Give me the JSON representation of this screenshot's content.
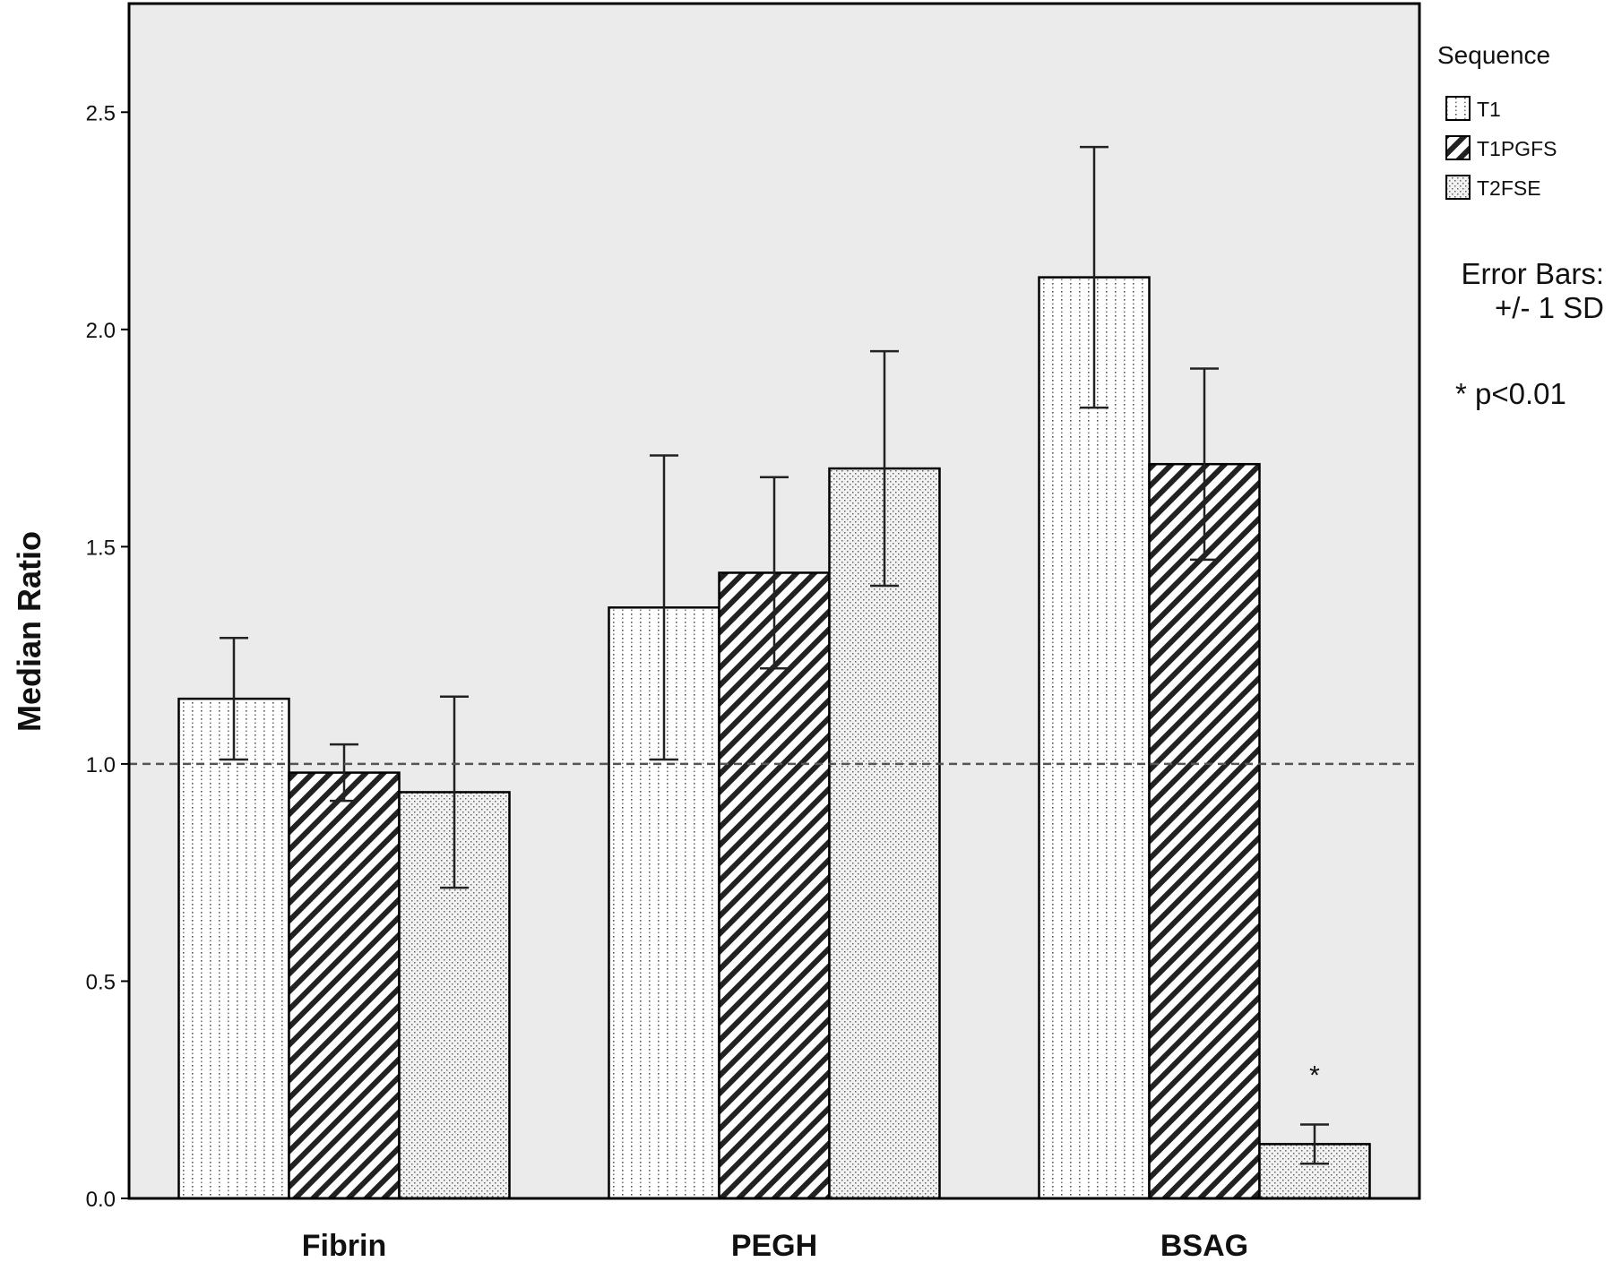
{
  "chart_data": {
    "type": "bar",
    "categories": [
      "Fibrin",
      "PEGH",
      "BSAG"
    ],
    "ylabel": "Median Ratio",
    "xlabel": "",
    "ylim": [
      0,
      2.75
    ],
    "yticks": [
      "0.0",
      "0.5",
      "1.0",
      "1.5",
      "2.0",
      "2.5"
    ],
    "reference_line": 1.0,
    "legend_title": "Sequence",
    "series": [
      {
        "name": "T1",
        "pattern": "dots",
        "values": [
          1.15,
          1.36,
          2.12
        ],
        "sd": [
          0.14,
          0.35,
          0.3
        ]
      },
      {
        "name": "T1PGFS",
        "pattern": "diagonal-hatch",
        "values": [
          0.98,
          1.44,
          1.69
        ],
        "sd": [
          0.065,
          0.22,
          0.22
        ]
      },
      {
        "name": "T2FSE",
        "pattern": "fine-dots",
        "values": [
          0.935,
          1.68,
          0.125
        ],
        "sd": [
          0.22,
          0.27,
          0.045
        ]
      }
    ],
    "error_bars_note": [
      "Error Bars:",
      "+/- 1 SD"
    ],
    "significance_note": "* p<0.01",
    "significance_markers": [
      {
        "category": "BSAG",
        "series": "T2FSE",
        "symbol": "*"
      }
    ],
    "background": "#ebebeb",
    "grid": false,
    "legend_position": "top-right"
  }
}
